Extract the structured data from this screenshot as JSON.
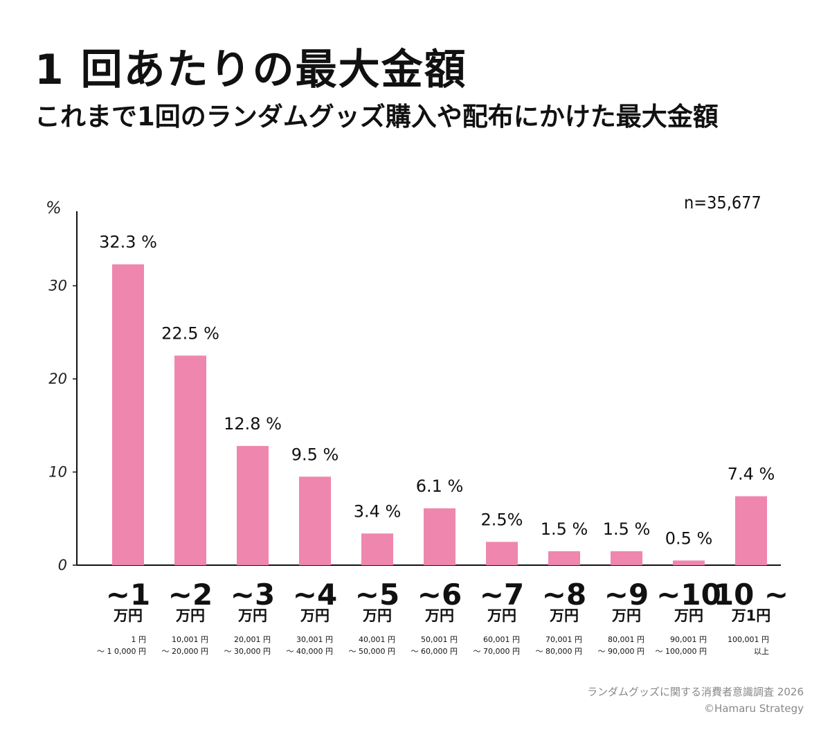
{
  "header": {
    "title": "1 回あたりの最大金額",
    "subtitle": "これまで1回のランダムグッズ購入や配布にかけた最大金額"
  },
  "sample_size": "n=35,677",
  "footer": {
    "source": "ランダムグッズに関する消費者意識調査 2026",
    "copyright": "©Hamaru Strategy"
  },
  "colors": {
    "bar": "#ef86ae",
    "axis": "#111111"
  },
  "chart_data": {
    "type": "bar",
    "yunit": "%",
    "ylim": [
      0,
      38
    ],
    "yticks": [
      0,
      10,
      20,
      30
    ],
    "grid": false,
    "categories": [
      "~1",
      "~2",
      "~3",
      "~4",
      "~5",
      "~6",
      "~7",
      "~8",
      "~9",
      "~10",
      "10 ~"
    ],
    "category_units": [
      "万円",
      "万円",
      "万円",
      "万円",
      "万円",
      "万円",
      "万円",
      "万円",
      "万円",
      "万円",
      "万1円"
    ],
    "category_ranges": [
      [
        "1 円",
        "～ 1 0,000 円"
      ],
      [
        "10,001 円",
        "～ 20,000 円"
      ],
      [
        "20,001 円",
        "～ 30,000 円"
      ],
      [
        "30,001 円",
        "～ 40,000 円"
      ],
      [
        "40,001 円",
        "～ 50,000 円"
      ],
      [
        "50,001 円",
        "～ 60,000 円"
      ],
      [
        "60,001 円",
        "～ 70,000 円"
      ],
      [
        "70,001 円",
        "～ 80,000 円"
      ],
      [
        "80,001 円",
        "～ 90,000 円"
      ],
      [
        "90,001 円",
        "～ 100,000 円"
      ],
      [
        "100,001 円",
        "以上"
      ]
    ],
    "values": [
      32.3,
      22.5,
      12.8,
      9.5,
      3.4,
      6.1,
      2.5,
      1.5,
      1.5,
      0.5,
      7.4
    ],
    "data_labels": [
      "32.3 %",
      "22.5 %",
      "12.8 %",
      "9.5 %",
      "3.4 %",
      "6.1 %",
      "2.5%",
      "1.5 %",
      "1.5 %",
      "0.5 %",
      "7.4 %"
    ]
  }
}
